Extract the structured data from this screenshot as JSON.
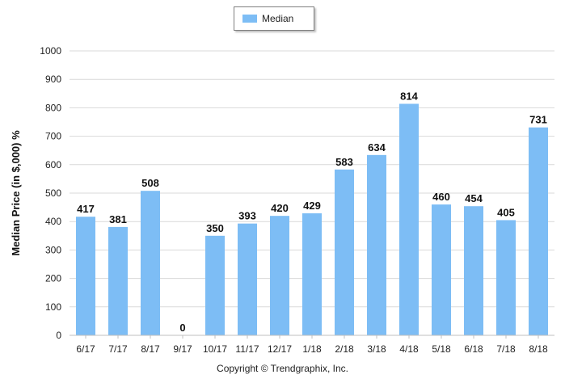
{
  "chart_data": {
    "type": "bar",
    "categories": [
      "6/17",
      "7/17",
      "8/17",
      "9/17",
      "10/17",
      "11/17",
      "12/17",
      "1/18",
      "2/18",
      "3/18",
      "4/18",
      "5/18",
      "6/18",
      "7/18",
      "8/18"
    ],
    "series": [
      {
        "name": "Median",
        "values": [
          417,
          381,
          508,
          0,
          350,
          393,
          420,
          429,
          583,
          634,
          814,
          460,
          454,
          405,
          731
        ]
      }
    ],
    "ylabel": "Median Price (in $,000) %",
    "ylim": [
      0,
      1000
    ],
    "yticks": [
      0,
      100,
      200,
      300,
      400,
      500,
      600,
      700,
      800,
      900,
      1000
    ],
    "grid": true,
    "legend_position": "top-center",
    "bar_color": "#7dbdf5",
    "data_labels": true
  },
  "legend": {
    "label": "Median"
  },
  "footer": {
    "copyright": "Copyright © Trendgraphix, Inc."
  }
}
